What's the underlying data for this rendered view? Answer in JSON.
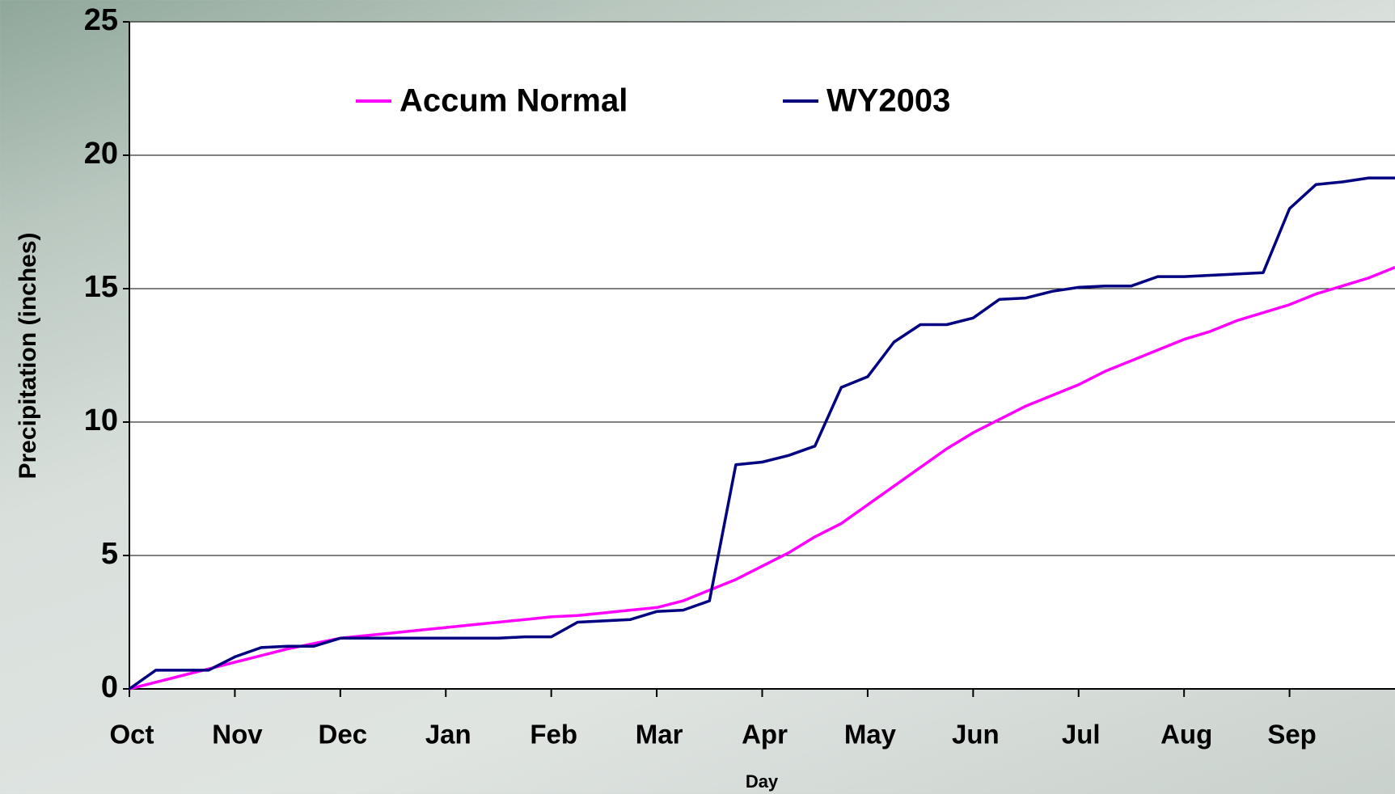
{
  "chart_data": {
    "type": "line",
    "x_label": "Day",
    "y_label": "Precipitation (inches)",
    "categories": [
      "Oct",
      null,
      null,
      null,
      "Nov",
      null,
      null,
      null,
      "Dec",
      null,
      null,
      null,
      "Jan",
      null,
      null,
      null,
      "Feb",
      null,
      null,
      null,
      "Mar",
      null,
      null,
      null,
      "Apr",
      null,
      null,
      null,
      "May",
      null,
      null,
      null,
      "Jun",
      null,
      null,
      null,
      "Jul",
      null,
      null,
      null,
      "Aug",
      null,
      null,
      null,
      "Sep",
      null,
      null,
      null,
      null
    ],
    "series": [
      {
        "name": "Accum Normal",
        "color": "#ff00ff",
        "values": [
          0,
          0.25,
          0.5,
          0.75,
          1.0,
          1.25,
          1.5,
          1.7,
          1.9,
          2.0,
          2.1,
          2.2,
          2.3,
          2.4,
          2.5,
          2.6,
          2.7,
          2.75,
          2.85,
          2.95,
          3.05,
          3.3,
          3.7,
          4.1,
          4.6,
          5.1,
          5.7,
          6.2,
          6.9,
          7.6,
          8.3,
          9.0,
          9.6,
          10.1,
          10.6,
          11.0,
          11.4,
          11.9,
          12.3,
          12.7,
          13.1,
          13.4,
          13.8,
          14.1,
          14.4,
          14.8,
          15.1,
          15.4,
          15.8
        ]
      },
      {
        "name": "WY2003",
        "color": "#000080",
        "values": [
          0,
          0.7,
          0.7,
          0.7,
          1.2,
          1.55,
          1.6,
          1.6,
          1.9,
          1.9,
          1.9,
          1.9,
          1.9,
          1.9,
          1.9,
          1.95,
          1.95,
          2.5,
          2.55,
          2.6,
          2.9,
          2.95,
          3.3,
          8.4,
          8.5,
          8.75,
          9.1,
          11.3,
          11.7,
          13.0,
          13.65,
          13.65,
          13.9,
          14.6,
          14.65,
          14.9,
          15.05,
          15.1,
          15.1,
          15.45,
          15.45,
          15.5,
          15.55,
          15.6,
          18.0,
          18.9,
          19.0,
          19.15,
          19.15
        ]
      }
    ],
    "ylim": [
      0,
      25
    ],
    "yticks": [
      0,
      5,
      10,
      15,
      20,
      25
    ],
    "grid": true
  }
}
